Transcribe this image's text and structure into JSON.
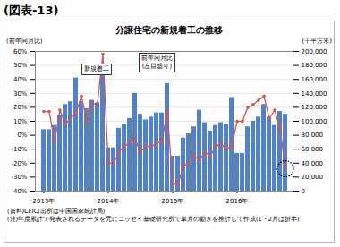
{
  "header": "(図表-13)",
  "chart_data": {
    "type": "bar",
    "title": "分譲住宅の新規着工の推移",
    "y_label": "(前年同月比)",
    "y2_label": "(千平方米)",
    "categories": [
      "2013年",
      null,
      null,
      null,
      null,
      null,
      null,
      null,
      null,
      null,
      null,
      null,
      "2014年",
      null,
      null,
      null,
      null,
      null,
      null,
      null,
      null,
      null,
      null,
      null,
      "2015年",
      null,
      null,
      null,
      null,
      null,
      null,
      null,
      null,
      null,
      null,
      null,
      "2016年",
      null,
      null,
      null,
      null,
      null,
      null,
      null,
      null,
      null
    ],
    "series": [
      {
        "name": "新規着工",
        "type": "bar",
        "axis": "y2",
        "color": "#4f81cd",
        "values": [
          88000,
          88000,
          94000,
          108000,
          124000,
          128000,
          162000,
          128000,
          118000,
          130000,
          126000,
          176000,
          62000,
          62000,
          90000,
          96000,
          104000,
          140000,
          110000,
          102000,
          106000,
          112000,
          112000,
          154000,
          50000,
          50000,
          76000,
          82000,
          92000,
          116000,
          98000,
          86000,
          94000,
          98000,
          96000,
          134000,
          54000,
          54000,
          92000,
          100000,
          106000,
          124000,
          106000,
          94000,
          114000,
          110000
        ]
      },
      {
        "name": "前年同月比",
        "type": "line",
        "color": "#d9534f",
        "marker": "circle",
        "values": [
          17,
          17,
          -5,
          18,
          8,
          12,
          16,
          28,
          10,
          22,
          23,
          58,
          -20,
          -20,
          -12,
          -8,
          -5,
          -3,
          -12,
          -8,
          -8,
          -6,
          -4,
          17,
          -35,
          -35,
          -22,
          -20,
          -15,
          -18,
          -12,
          -15,
          -8,
          -6,
          -10,
          -8,
          10,
          10,
          20,
          22,
          25,
          28,
          12,
          18,
          5,
          -24
        ]
      }
    ],
    "ylim": [
      -40,
      60
    ],
    "yticks": [
      {
        "value": -40,
        "label": "-40%"
      },
      {
        "value": -30,
        "label": "-30%"
      },
      {
        "value": -20,
        "label": "-20%"
      },
      {
        "value": -10,
        "label": "-10%"
      },
      {
        "value": 0,
        "label": "0%"
      },
      {
        "value": 10,
        "label": "10%"
      },
      {
        "value": 20,
        "label": "20%"
      },
      {
        "value": 30,
        "label": "30%"
      },
      {
        "value": 40,
        "label": "40%"
      },
      {
        "value": 50,
        "label": "50%"
      },
      {
        "value": 60,
        "label": "60%"
      }
    ],
    "y2lim": [
      0,
      200000
    ],
    "y2ticks": [
      0,
      {
        "value": 20000,
        "label": "20,000"
      },
      {
        "value": 40000,
        "label": "40,000"
      },
      {
        "value": 60000,
        "label": "60,000"
      },
      {
        "value": 80000,
        "label": "80,000"
      },
      {
        "value": 100000,
        "label": "100,000"
      },
      {
        "value": 120000,
        "label": "120,000"
      },
      {
        "value": 140000,
        "label": "140,000"
      },
      {
        "value": 160000,
        "label": "160,000"
      },
      {
        "value": 180000,
        "label": "180,000"
      },
      {
        "value": 200000,
        "label": "200,000"
      }
    ],
    "grid": true,
    "annotations": [
      [
        "新規着工"
      ],
      [
        "前年同月比",
        "(左目盛り)"
      ]
    ],
    "notes": [
      "(資料)CEIC(出所は中国国家統計局)",
      "(注)年度累計で発表されるデータを元にニッセイ基礎研究所で単月の動きを推計して作成(1・2月は折半)"
    ]
  }
}
